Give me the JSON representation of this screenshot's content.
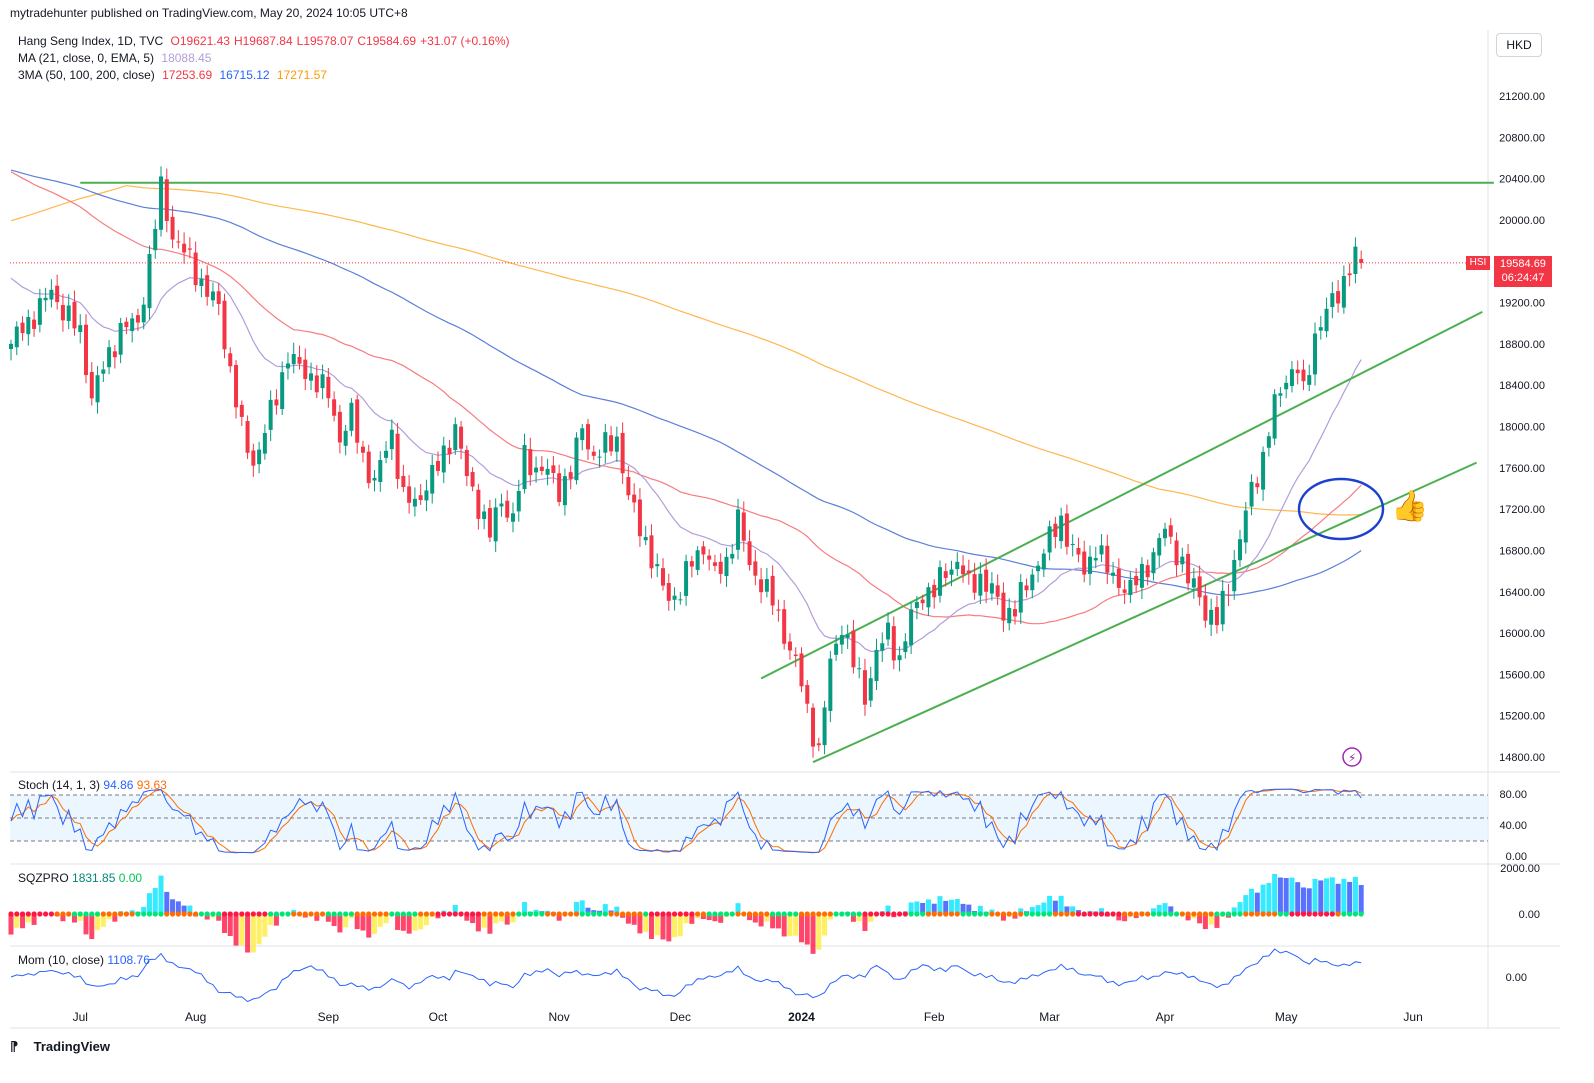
{
  "header": {
    "publisher": "mytradehunter published on TradingView.com, May 20, 2024 10:05 UTC+8"
  },
  "legend": {
    "symbol": "Hang Seng Index, 1D, TVC",
    "open": "O19621.43",
    "high": "H19687.84",
    "low": "L19578.07",
    "close": "C19584.69",
    "change": "+31.07 (+0.16%)",
    "ma_label": "MA (21, close, 0, EMA, 5)",
    "ma_value": "18088.45",
    "ma3_label": "3MA (50, 100, 200, close)",
    "ma50": "17253.69",
    "ma100": "16715.12",
    "ma200": "17271.57"
  },
  "currency": "HKD",
  "price_tag": {
    "symbol": "HSI",
    "price": "19584.69",
    "countdown": "06:24:47"
  },
  "stoch": {
    "label": "Stoch (14, 1, 3)",
    "k": "94.86",
    "d": "93.63"
  },
  "sqz": {
    "label": "SQZPRO",
    "v1": "1831.85",
    "v2": "0.00"
  },
  "mom": {
    "label": "Mom (10, close)",
    "value": "1108.76"
  },
  "footer": {
    "brand": "TradingView"
  },
  "colors": {
    "up": "#089981",
    "down": "#f23645",
    "ma21": "#b39ddb",
    "ma50": "#f77c80",
    "ma100": "#5b7fdb",
    "ma200": "#ffb74d",
    "trend": "#4caf50",
    "annot": "#1e40cf"
  },
  "chart_data": {
    "type": "candlestick",
    "price_axis": {
      "ticks": [
        21200,
        20800,
        20400,
        20000,
        19600,
        19200,
        18800,
        18400,
        18000,
        17600,
        17200,
        16800,
        16400,
        16000,
        15600,
        15200,
        14800
      ],
      "labels": [
        "21200.00",
        "20800.00",
        "20400.00",
        "20000.00",
        "19600.00",
        "19200.00",
        "18800.00",
        "18400.00",
        "18000.00",
        "17600.00",
        "17200.00",
        "16800.00",
        "16400.00",
        "16000.00",
        "15600.00",
        "15200.00",
        "14800.00"
      ],
      "range": [
        14700,
        21600
      ]
    },
    "time_axis": {
      "labels": [
        "Jul",
        "Aug",
        "Sep",
        "Oct",
        "Nov",
        "Dec",
        "2024",
        "Feb",
        "Mar",
        "Apr",
        "May",
        "Jun"
      ],
      "label_index": [
        12,
        32,
        55,
        74,
        95,
        116,
        137,
        160,
        180,
        200,
        221,
        243
      ]
    },
    "path_anchors": [
      [
        0,
        18800
      ],
      [
        7,
        19300
      ],
      [
        12,
        18900
      ],
      [
        14,
        18300
      ],
      [
        19,
        18950
      ],
      [
        22,
        19000
      ],
      [
        24,
        19600
      ],
      [
        26,
        20300
      ],
      [
        28,
        19850
      ],
      [
        31,
        19600
      ],
      [
        34,
        19300
      ],
      [
        36,
        19150
      ],
      [
        38,
        18550
      ],
      [
        40,
        17950
      ],
      [
        42,
        17650
      ],
      [
        44,
        17950
      ],
      [
        46,
        18300
      ],
      [
        48,
        18700
      ],
      [
        50,
        18550
      ],
      [
        52,
        18500
      ],
      [
        55,
        18300
      ],
      [
        57,
        17900
      ],
      [
        59,
        18100
      ],
      [
        61,
        17700
      ],
      [
        63,
        17450
      ],
      [
        66,
        17950
      ],
      [
        68,
        17300
      ],
      [
        70,
        17250
      ],
      [
        72,
        17450
      ],
      [
        74,
        17600
      ],
      [
        77,
        18000
      ],
      [
        79,
        17500
      ],
      [
        81,
        17250
      ],
      [
        83,
        16950
      ],
      [
        85,
        17300
      ],
      [
        87,
        17100
      ],
      [
        89,
        17700
      ],
      [
        91,
        17600
      ],
      [
        93,
        17550
      ],
      [
        95,
        17400
      ],
      [
        97,
        17550
      ],
      [
        99,
        18000
      ],
      [
        101,
        17700
      ],
      [
        103,
        17800
      ],
      [
        105,
        17900
      ],
      [
        107,
        17300
      ],
      [
        110,
        16900
      ],
      [
        112,
        16550
      ],
      [
        114,
        16350
      ],
      [
        116,
        16400
      ],
      [
        118,
        16700
      ],
      [
        120,
        16850
      ],
      [
        122,
        16550
      ],
      [
        124,
        16700
      ],
      [
        126,
        17100
      ],
      [
        128,
        16650
      ],
      [
        130,
        16500
      ],
      [
        132,
        16300
      ],
      [
        134,
        16000
      ],
      [
        136,
        15700
      ],
      [
        137,
        15500
      ],
      [
        138,
        15250
      ],
      [
        140,
        14850
      ],
      [
        142,
        15700
      ],
      [
        144,
        16100
      ],
      [
        146,
        15700
      ],
      [
        148,
        15400
      ],
      [
        150,
        15800
      ],
      [
        152,
        16000
      ],
      [
        154,
        15750
      ],
      [
        156,
        16150
      ],
      [
        158,
        16400
      ],
      [
        160,
        16400
      ],
      [
        162,
        16600
      ],
      [
        164,
        16700
      ],
      [
        166,
        16450
      ],
      [
        168,
        16550
      ],
      [
        170,
        16400
      ],
      [
        172,
        16200
      ],
      [
        174,
        16250
      ],
      [
        176,
        16450
      ],
      [
        178,
        16700
      ],
      [
        180,
        16900
      ],
      [
        182,
        17100
      ],
      [
        184,
        16800
      ],
      [
        186,
        16600
      ],
      [
        188,
        16850
      ],
      [
        190,
        16600
      ],
      [
        192,
        16500
      ],
      [
        194,
        16400
      ],
      [
        196,
        16600
      ],
      [
        198,
        16750
      ],
      [
        200,
        17000
      ],
      [
        202,
        16800
      ],
      [
        204,
        16500
      ],
      [
        206,
        16400
      ],
      [
        207,
        16200
      ],
      [
        209,
        16100
      ],
      [
        211,
        16500
      ],
      [
        213,
        16900
      ],
      [
        215,
        17400
      ],
      [
        217,
        17700
      ],
      [
        219,
        18200
      ],
      [
        221,
        18500
      ],
      [
        223,
        18550
      ],
      [
        224,
        18300
      ],
      [
        226,
        18900
      ],
      [
        228,
        19100
      ],
      [
        230,
        19300
      ],
      [
        232,
        19550
      ],
      [
        233,
        19620
      ],
      [
        234,
        19584
      ]
    ],
    "last_price": 19584.69,
    "ma_periods": [
      21,
      50,
      100,
      200
    ],
    "trendlines": [
      {
        "name": "resistance",
        "p1": [
          12,
          20360
        ],
        "p2": [
          257,
          20360
        ]
      },
      {
        "name": "channel-upper",
        "p1": [
          130,
          15560
        ],
        "p2": [
          255,
          19110
        ]
      },
      {
        "name": "channel-lower",
        "p1": [
          139,
          14750
        ],
        "p2": [
          254,
          17650
        ]
      }
    ],
    "stoch_axis": [
      "80.00",
      "40.00",
      "0.00"
    ],
    "sqz_axis": [
      "2000.00",
      "0.00"
    ],
    "mom_axis": [
      "0.00"
    ]
  }
}
